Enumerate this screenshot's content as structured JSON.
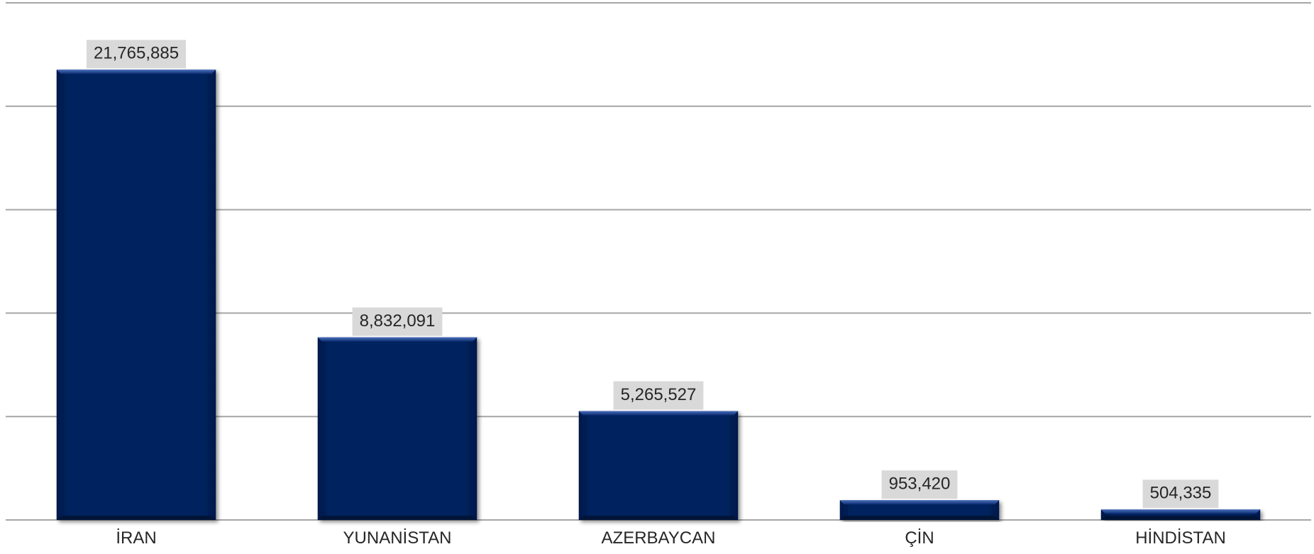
{
  "chart_data": {
    "type": "bar",
    "title": "",
    "xlabel": "",
    "ylabel": "",
    "categories": [
      "İRAN",
      "YUNANİSTAN",
      "AZERBAYCAN",
      "ÇİN",
      "HİNDİSTAN"
    ],
    "values": [
      21765885,
      8832091,
      5265527,
      953420,
      504335
    ],
    "data_labels": [
      "21,765,885",
      "8,832,091",
      "5,265,527",
      "953,420",
      "504,335"
    ],
    "ylim": [
      0,
      25000000
    ],
    "y_gridlines": [
      0,
      5000000,
      10000000,
      15000000,
      20000000,
      25000000
    ],
    "y_tick_labels_shown": false,
    "grid": true,
    "legend": "none",
    "colors": {
      "bar": "#06245f",
      "bar_highlight": "#2a4f9c",
      "bar_shadow": "#021437",
      "gridline": "#a6a6a6",
      "label_bg": "#d9d9d9",
      "text": "#262626"
    }
  }
}
